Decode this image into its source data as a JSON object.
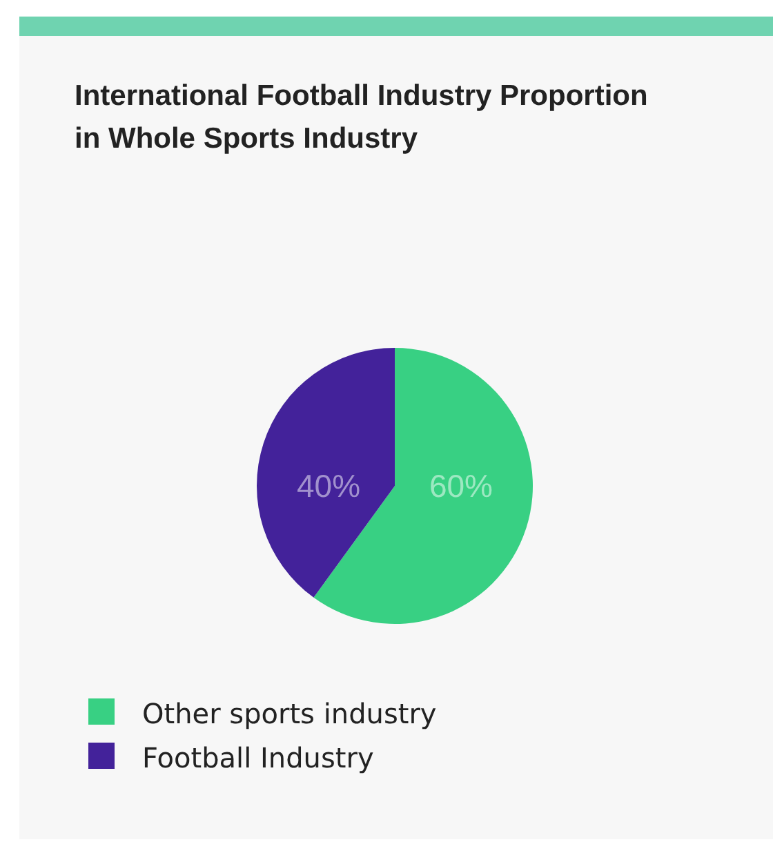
{
  "chart_data": {
    "type": "pie",
    "title": "International Football Industry Proportion in Whole Sports Industry",
    "categories": [
      "Other sports industry",
      "Football Industry"
    ],
    "values": [
      60,
      40
    ],
    "colors": [
      "#38d083",
      "#43229a"
    ],
    "value_labels": [
      "60%",
      "40%"
    ],
    "legend": "bottom left"
  }
}
